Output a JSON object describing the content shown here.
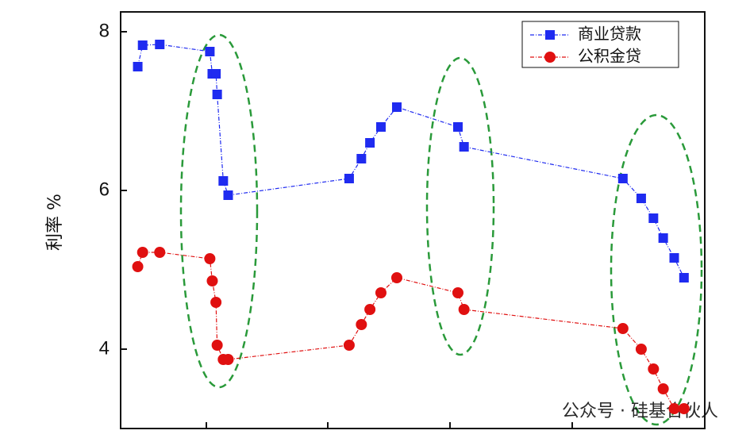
{
  "chart_data": {
    "type": "line",
    "y_label": "利率 %",
    "x": [
      0.44,
      0.48,
      0.62,
      1.03,
      1.05,
      1.08,
      1.09,
      1.14,
      1.18,
      2.17,
      2.27,
      2.34,
      2.43,
      2.56,
      3.06,
      3.11,
      4.41,
      4.56,
      4.66,
      4.74,
      4.83,
      4.91
    ],
    "xlim": [
      0.3,
      5.08
    ],
    "ylim": [
      3.0,
      8.25
    ],
    "yticks": [
      4,
      6,
      8
    ],
    "legend": "top-right",
    "series": [
      {
        "name": "商业贷款",
        "color": "#1f2bf0",
        "marker": "square",
        "values": [
          7.56,
          7.83,
          7.84,
          7.75,
          7.47,
          7.47,
          7.21,
          6.12,
          5.94,
          6.15,
          6.4,
          6.6,
          6.8,
          7.05,
          6.8,
          6.55,
          6.15,
          5.9,
          5.65,
          5.4,
          5.15,
          4.9
        ]
      },
      {
        "name": "公积金贷",
        "color": "#e01010",
        "marker": "circle",
        "values": [
          5.04,
          5.22,
          5.22,
          5.14,
          4.86,
          4.59,
          4.05,
          3.87,
          3.87,
          4.05,
          4.31,
          4.5,
          4.71,
          4.9,
          4.71,
          4.5,
          4.26,
          4.0,
          3.75,
          3.5,
          3.25,
          3.25
        ]
      }
    ],
    "watermark": "公众号 · 硅基合伙人"
  }
}
